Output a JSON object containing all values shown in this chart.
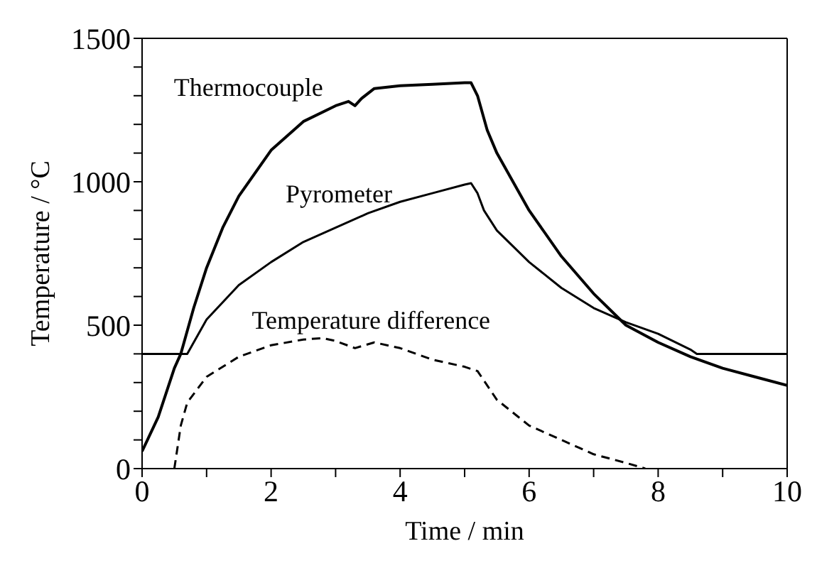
{
  "chart_data": {
    "type": "line",
    "xlabel": "Time / min",
    "ylabel": "Temperature / °C",
    "xlim": [
      0,
      10
    ],
    "xticks": [
      0,
      {
        "value": 1,
        "label": null
      },
      2,
      {
        "value": 3,
        "label": null
      },
      4,
      {
        "value": 5,
        "label": null
      },
      6,
      {
        "value": 7,
        "label": null
      },
      8,
      {
        "value": 9,
        "label": null
      },
      10
    ],
    "ylim": [
      0,
      1500
    ],
    "yticks": [
      0,
      {
        "value": 100,
        "label": null
      },
      {
        "value": 200,
        "label": null
      },
      {
        "value": 300,
        "label": null
      },
      {
        "value": 400,
        "label": null
      },
      500,
      {
        "value": 600,
        "label": null
      },
      {
        "value": 700,
        "label": null
      },
      {
        "value": 800,
        "label": null
      },
      {
        "value": 900,
        "label": null
      },
      1000,
      {
        "value": 1100,
        "label": null
      },
      {
        "value": 1200,
        "label": null
      },
      {
        "value": 1300,
        "label": null
      },
      {
        "value": 1400,
        "label": null
      },
      1500
    ],
    "marker": "none",
    "series": [
      {
        "name": "Thermocouple",
        "color": "#000000",
        "line_style": "solid",
        "x": [
          0,
          0.25,
          0.5,
          0.6,
          0.8,
          1,
          1.25,
          1.5,
          2,
          2.5,
          3,
          3.2,
          3.3,
          3.4,
          3.6,
          4,
          4.5,
          5,
          5.1,
          5.2,
          5.35,
          5.5,
          6,
          6.5,
          7,
          7.5,
          8,
          8.5,
          9,
          9.5,
          10
        ],
        "values": [
          60,
          180,
          350,
          400,
          560,
          700,
          840,
          950,
          1110,
          1210,
          1265,
          1280,
          1265,
          1290,
          1325,
          1335,
          1340,
          1345,
          1345,
          1300,
          1180,
          1100,
          900,
          740,
          610,
          500,
          440,
          390,
          350,
          320,
          290
        ]
      },
      {
        "name": "Pyrometer",
        "color": "#000000",
        "line_style": "solid",
        "x": [
          0,
          0.7,
          1,
          1.5,
          2,
          2.5,
          3,
          3.5,
          4,
          4.5,
          5,
          5.1,
          5.2,
          5.3,
          5.5,
          6,
          6.5,
          7,
          7.5,
          8,
          8.5,
          8.6,
          10
        ],
        "values": [
          400,
          400,
          520,
          640,
          720,
          790,
          840,
          890,
          930,
          960,
          990,
          995,
          960,
          900,
          830,
          720,
          630,
          560,
          510,
          470,
          415,
          400,
          400
        ]
      },
      {
        "name": "Temperature difference",
        "color": "#000000",
        "line_style": "dashed",
        "x": [
          0.5,
          0.6,
          0.7,
          1,
          1.5,
          2,
          2.5,
          2.8,
          3,
          3.3,
          3.6,
          4,
          4.5,
          5,
          5.2,
          5.5,
          6,
          6.5,
          7,
          7.5,
          7.8
        ],
        "values": [
          0,
          150,
          230,
          320,
          390,
          430,
          450,
          455,
          445,
          420,
          440,
          420,
          380,
          355,
          340,
          240,
          150,
          100,
          50,
          20,
          0
        ]
      }
    ]
  }
}
